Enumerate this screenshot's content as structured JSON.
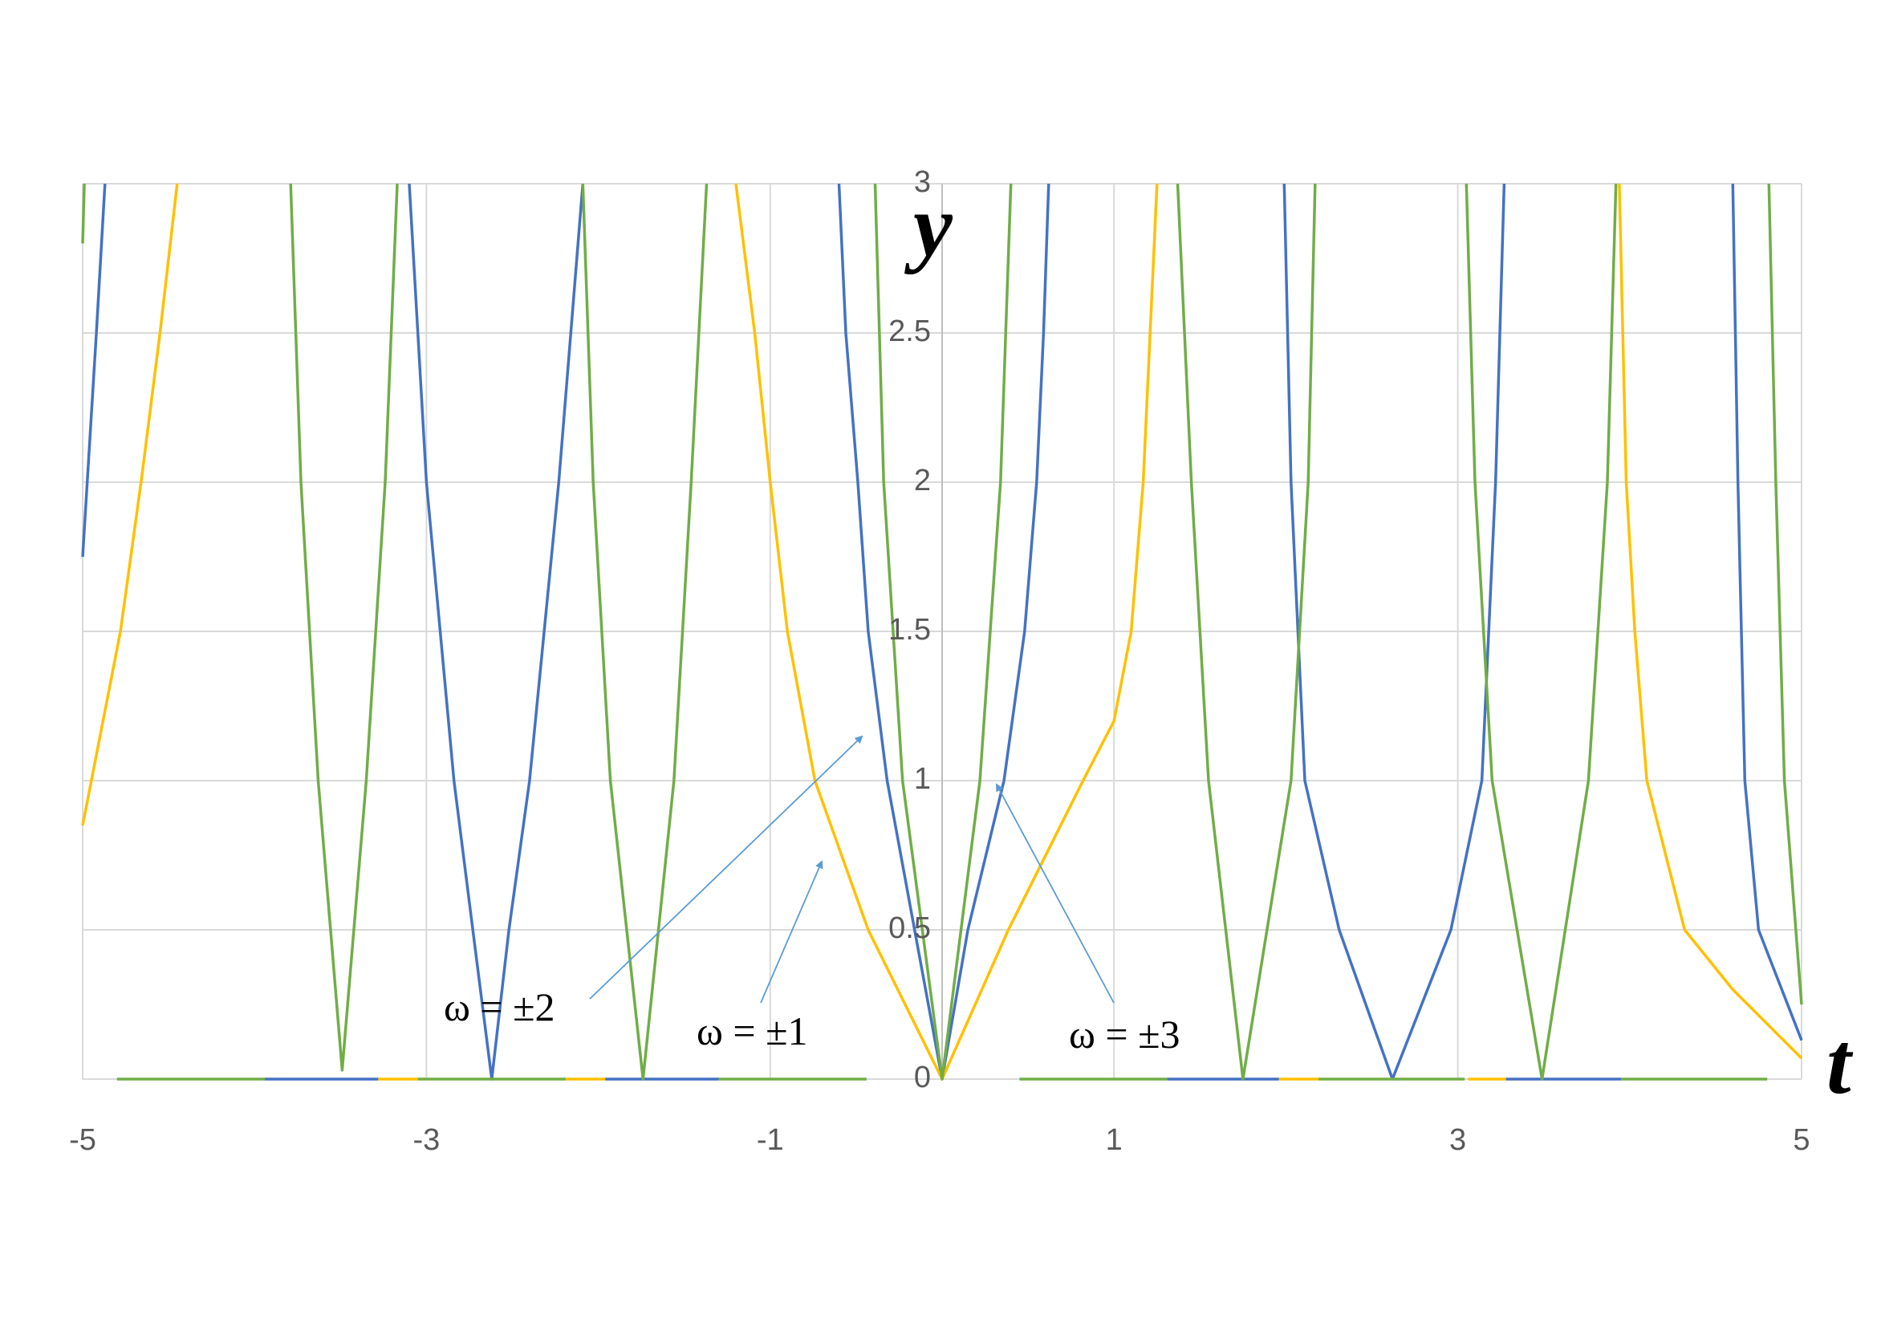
{
  "chart_data": {
    "type": "line",
    "x_label": "t",
    "y_label": "y",
    "xlim": [
      -5,
      5
    ],
    "ylim": [
      0,
      3
    ],
    "xticks": [
      -5,
      -3,
      -1,
      1,
      3,
      5
    ],
    "yticks": [
      0,
      0.5,
      1,
      1.5,
      2,
      2.5,
      3
    ],
    "grid": true,
    "annotations": [
      {
        "text": "ω = ±2"
      },
      {
        "text": "ω = ±1"
      },
      {
        "text": "ω = ±3"
      }
    ],
    "series": [
      {
        "color": "#4472c4",
        "x": [
          -5,
          -4.92,
          -4.87,
          -4.4,
          -3.94,
          -3.28,
          -3.2,
          -3.1,
          -3.0,
          -2.84,
          -2.73,
          -2.62,
          -2.52,
          -2.4,
          -2.23,
          -2.09,
          -2.0,
          -1.96,
          -1.3,
          -1.0,
          -0.6,
          -0.56,
          -0.49,
          -0.43,
          -0.32,
          -0.16,
          0,
          0.15,
          0.36,
          0.48,
          0.55,
          0.59,
          0.62,
          1.0,
          1.31,
          1.96,
          1.98,
          1.99,
          2.03,
          2.11,
          2.31,
          2.62,
          2.96,
          3.14,
          3.22,
          3.27,
          3.275,
          3.28,
          3.95,
          4.3,
          4.6,
          4.63,
          4.67,
          4.75,
          5
        ],
        "values": [
          1.75,
          2.5,
          3,
          null,
          0,
          0,
          null,
          3,
          2,
          1,
          0.5,
          0,
          0.5,
          1,
          2,
          3,
          null,
          0,
          0,
          null,
          3,
          2.5,
          2,
          1.5,
          1,
          0.5,
          0,
          0.5,
          1,
          1.5,
          2,
          2.5,
          3,
          null,
          0,
          0,
          null,
          3,
          2,
          1,
          0.5,
          0,
          0.5,
          1,
          2,
          3,
          null,
          0,
          0,
          null,
          3,
          2,
          1,
          0.5,
          0.13
        ]
      },
      {
        "color": "#ffc000",
        "x": [
          -5,
          -4.78,
          -4.66,
          -4.55,
          -4.45,
          -4.0,
          -3.28,
          -3.05,
          -2.6,
          -2.19,
          -1.96,
          -1.6,
          -1.2,
          -1.09,
          -1.0,
          -0.9,
          -0.74,
          -0.43,
          0,
          0.385,
          0.82,
          1.0,
          1.1,
          1.17,
          1.21,
          1.25,
          1.6,
          1.96,
          2.19,
          2.6,
          3.06,
          3.28,
          3.6,
          3.94,
          3.96,
          3.98,
          4.03,
          4.1,
          4.32,
          4.6,
          5
        ],
        "values": [
          0.85,
          1.5,
          2,
          2.5,
          3,
          null,
          0,
          0,
          null,
          0,
          0,
          null,
          3,
          2.5,
          2,
          1.5,
          1,
          0.5,
          0,
          0.5,
          1,
          1.2,
          1.5,
          2,
          2.5,
          3,
          null,
          0,
          0,
          null,
          0,
          0,
          null,
          3,
          2.5,
          2,
          1.5,
          1,
          0.5,
          0.3,
          0.07
        ]
      },
      {
        "color": "#70ad47",
        "x": [
          -5,
          -4.99,
          -4.9,
          -4.8,
          -3.94,
          -3.85,
          -3.79,
          -3.73,
          -3.63,
          -3.49,
          -3.35,
          -3.24,
          -3.17,
          -3.1,
          -3.05,
          -2.19,
          -2.15,
          -2.09,
          -2.03,
          -1.93,
          -1.74,
          -1.56,
          -1.46,
          -1.37,
          -1.33,
          -1.3,
          -0.44,
          -0.42,
          -0.39,
          -0.34,
          -0.23,
          0,
          0.22,
          0.34,
          0.4,
          0.42,
          0.45,
          1.31,
          1.34,
          1.37,
          1.45,
          1.55,
          1.75,
          2.03,
          2.13,
          2.17,
          2.18,
          2.19,
          3.04,
          3.045,
          3.05,
          3.1,
          3.2,
          3.49,
          3.76,
          3.87,
          3.92,
          3.935,
          3.95,
          4.8,
          4.805,
          4.81,
          4.85,
          4.9,
          5
        ],
        "values": [
          2.8,
          3,
          null,
          0,
          0,
          null,
          3,
          2,
          1,
          0.03,
          1,
          2,
          3,
          null,
          0,
          0,
          null,
          3,
          2,
          1,
          0,
          1,
          2,
          3,
          null,
          0,
          0,
          null,
          3,
          2,
          1,
          0,
          1,
          2,
          3,
          null,
          0,
          0,
          null,
          3,
          2,
          1,
          0,
          1,
          2,
          3,
          null,
          0,
          0,
          null,
          3,
          2,
          1,
          0,
          1,
          2,
          3,
          null,
          0,
          0,
          null,
          3,
          2,
          1,
          0.25
        ]
      }
    ]
  }
}
